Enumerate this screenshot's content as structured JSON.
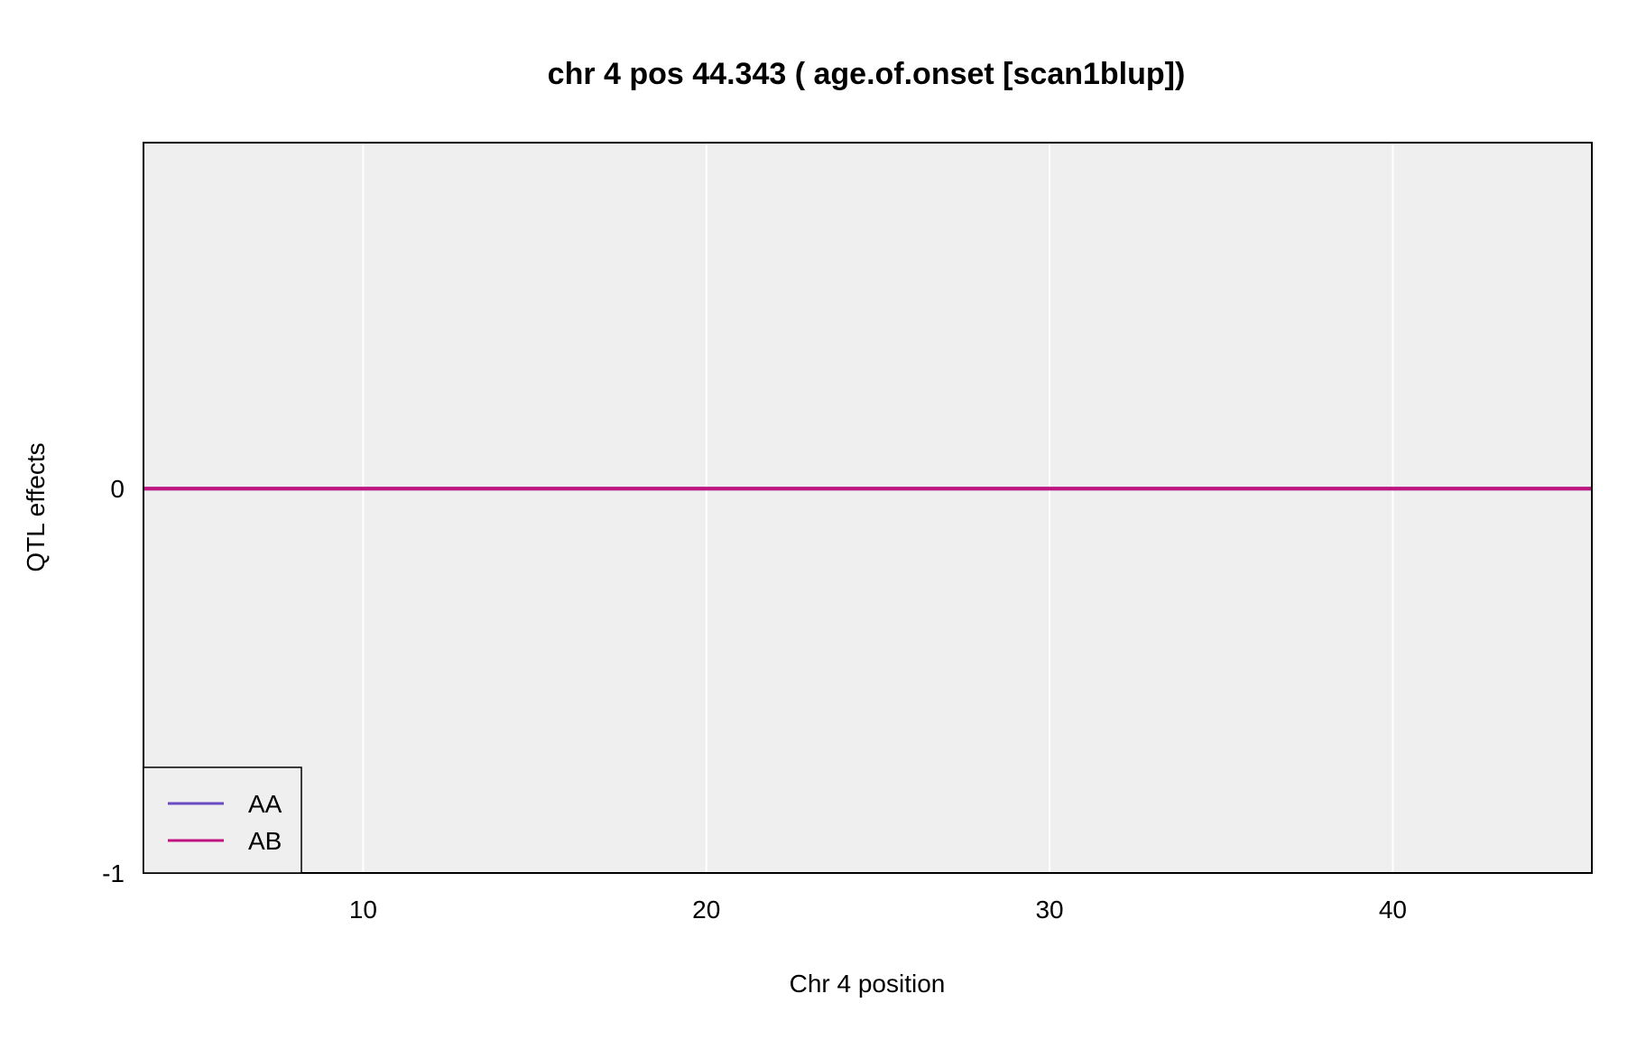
{
  "chart_data": {
    "type": "line",
    "title": "chr 4 pos 44.343 ( age.of.onset  [scan1blup])",
    "xlabel": "Chr 4 position",
    "ylabel": "QTL effects",
    "xlim": [
      3.6,
      45.8
    ],
    "ylim": [
      -1,
      0.9
    ],
    "xticks": [
      10,
      20,
      30,
      40
    ],
    "xtick_labels": [
      "10",
      "20",
      "30",
      "40"
    ],
    "yticks": [
      0,
      -1
    ],
    "ytick_labels": [
      "0",
      "-1"
    ],
    "grid": true,
    "legend_position": "bottom-left",
    "colors": {
      "panel_background": "#efefef",
      "grid": "#ffffff",
      "frame": "#000000"
    },
    "series": [
      {
        "name": "AA",
        "color": "#6a4bc4",
        "x": [
          3.6,
          45.8
        ],
        "y": [
          0,
          0
        ]
      },
      {
        "name": "AB",
        "color": "#c0137f",
        "x": [
          3.6,
          45.8
        ],
        "y": [
          0,
          0
        ]
      }
    ]
  }
}
